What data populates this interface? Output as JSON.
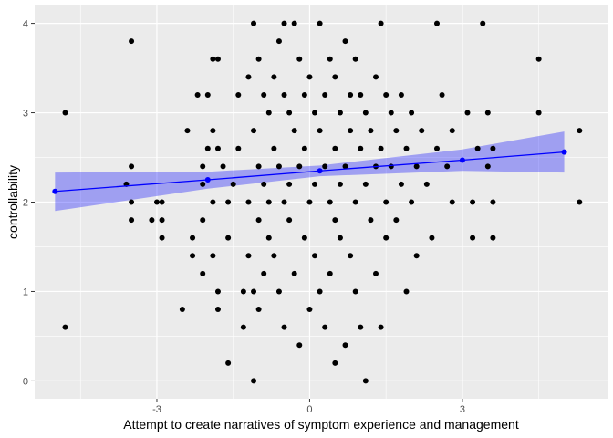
{
  "chart_data": {
    "type": "scatter",
    "title": "",
    "xlabel": "Attempt to create narratives of symptom experience and management",
    "ylabel": "controllability",
    "xlim": [
      -5.4,
      5.85
    ],
    "ylim": [
      -0.2,
      4.2
    ],
    "x_ticks": [
      -3,
      0,
      3
    ],
    "x_tick_labels": [
      "-3",
      "0",
      "3"
    ],
    "y_ticks": [
      0,
      1,
      2,
      3,
      4
    ],
    "y_tick_labels": [
      "0",
      "1",
      "2",
      "3",
      "4"
    ],
    "grid": true,
    "legend": "none",
    "colors": {
      "panel": "#ebebeb",
      "grid_major": "#ffffff",
      "points": "#000000",
      "fit_line": "#0000ff",
      "ribbon": "#0000ff"
    },
    "series": [
      {
        "kind": "points",
        "points": [
          [
            -4.8,
            3.0
          ],
          [
            -4.8,
            0.6
          ],
          [
            -3.5,
            3.8
          ],
          [
            -3.6,
            2.2
          ],
          [
            -3.5,
            2.4
          ],
          [
            -3.5,
            2.0
          ],
          [
            -3.5,
            1.8
          ],
          [
            -3.1,
            1.8
          ],
          [
            -3.0,
            2.0
          ],
          [
            -2.9,
            2.0
          ],
          [
            -2.9,
            1.8
          ],
          [
            -2.9,
            1.6
          ],
          [
            -2.5,
            0.8
          ],
          [
            -2.4,
            2.8
          ],
          [
            -2.3,
            1.6
          ],
          [
            -2.3,
            1.4
          ],
          [
            -2.2,
            3.2
          ],
          [
            -2.1,
            2.4
          ],
          [
            -2.1,
            2.2
          ],
          [
            -2.1,
            1.8
          ],
          [
            -2.1,
            1.2
          ],
          [
            -2.0,
            3.2
          ],
          [
            -2.0,
            2.6
          ],
          [
            -1.9,
            3.6
          ],
          [
            -1.9,
            2.8
          ],
          [
            -1.9,
            2.0
          ],
          [
            -1.9,
            1.4
          ],
          [
            -1.8,
            3.6
          ],
          [
            -1.8,
            2.6
          ],
          [
            -1.8,
            1.0
          ],
          [
            -1.8,
            0.8
          ],
          [
            -1.7,
            2.4
          ],
          [
            -1.6,
            2.0
          ],
          [
            -1.6,
            1.6
          ],
          [
            -1.6,
            0.2
          ],
          [
            -1.5,
            2.2
          ],
          [
            -1.4,
            3.2
          ],
          [
            -1.4,
            2.6
          ],
          [
            -1.3,
            0.6
          ],
          [
            -1.3,
            1.0
          ],
          [
            -1.2,
            3.4
          ],
          [
            -1.2,
            2.0
          ],
          [
            -1.2,
            1.4
          ],
          [
            -1.1,
            4.0
          ],
          [
            -1.1,
            2.8
          ],
          [
            -1.1,
            1.0
          ],
          [
            -1.1,
            0.0
          ],
          [
            -1.0,
            3.6
          ],
          [
            -1.0,
            2.4
          ],
          [
            -1.0,
            1.8
          ],
          [
            -1.0,
            0.8
          ],
          [
            -0.9,
            3.2
          ],
          [
            -0.9,
            2.2
          ],
          [
            -0.9,
            1.2
          ],
          [
            -0.8,
            3.0
          ],
          [
            -0.8,
            2.0
          ],
          [
            -0.8,
            1.6
          ],
          [
            -0.7,
            3.4
          ],
          [
            -0.7,
            2.6
          ],
          [
            -0.7,
            1.4
          ],
          [
            -0.6,
            3.8
          ],
          [
            -0.6,
            2.4
          ],
          [
            -0.6,
            1.0
          ],
          [
            -0.5,
            4.0
          ],
          [
            -0.5,
            3.2
          ],
          [
            -0.5,
            2.0
          ],
          [
            -0.5,
            0.6
          ],
          [
            -0.4,
            3.0
          ],
          [
            -0.4,
            2.2
          ],
          [
            -0.4,
            1.8
          ],
          [
            -0.3,
            4.0
          ],
          [
            -0.3,
            2.8
          ],
          [
            -0.3,
            1.2
          ],
          [
            -0.2,
            3.6
          ],
          [
            -0.2,
            2.4
          ],
          [
            -0.2,
            0.4
          ],
          [
            -0.1,
            3.2
          ],
          [
            -0.1,
            2.6
          ],
          [
            -0.1,
            1.6
          ],
          [
            0.0,
            3.4
          ],
          [
            0.0,
            2.0
          ],
          [
            0.0,
            0.8
          ],
          [
            0.1,
            3.0
          ],
          [
            0.1,
            2.2
          ],
          [
            0.1,
            1.4
          ],
          [
            0.2,
            4.0
          ],
          [
            0.2,
            2.8
          ],
          [
            0.2,
            1.0
          ],
          [
            0.3,
            3.2
          ],
          [
            0.3,
            2.4
          ],
          [
            0.3,
            0.6
          ],
          [
            0.4,
            3.6
          ],
          [
            0.4,
            2.0
          ],
          [
            0.4,
            1.2
          ],
          [
            0.5,
            3.4
          ],
          [
            0.5,
            2.6
          ],
          [
            0.5,
            1.8
          ],
          [
            0.5,
            0.2
          ],
          [
            0.6,
            3.0
          ],
          [
            0.6,
            2.2
          ],
          [
            0.6,
            1.6
          ],
          [
            0.7,
            3.8
          ],
          [
            0.7,
            2.4
          ],
          [
            0.7,
            0.4
          ],
          [
            0.8,
            3.2
          ],
          [
            0.8,
            2.8
          ],
          [
            0.8,
            1.4
          ],
          [
            0.9,
            3.6
          ],
          [
            0.9,
            2.0
          ],
          [
            0.9,
            1.0
          ],
          [
            1.0,
            3.2
          ],
          [
            1.0,
            2.6
          ],
          [
            1.0,
            0.6
          ],
          [
            1.1,
            3.0
          ],
          [
            1.1,
            2.2
          ],
          [
            1.1,
            0.0
          ],
          [
            1.2,
            2.8
          ],
          [
            1.2,
            1.8
          ],
          [
            1.3,
            3.4
          ],
          [
            1.3,
            2.4
          ],
          [
            1.3,
            1.2
          ],
          [
            1.4,
            4.0
          ],
          [
            1.4,
            2.6
          ],
          [
            1.4,
            0.6
          ],
          [
            1.5,
            3.2
          ],
          [
            1.5,
            2.0
          ],
          [
            1.5,
            1.6
          ],
          [
            1.6,
            3.0
          ],
          [
            1.6,
            2.4
          ],
          [
            1.7,
            2.8
          ],
          [
            1.7,
            1.8
          ],
          [
            1.8,
            3.2
          ],
          [
            1.8,
            2.2
          ],
          [
            1.9,
            2.6
          ],
          [
            1.9,
            1.0
          ],
          [
            2.0,
            3.0
          ],
          [
            2.0,
            2.0
          ],
          [
            2.1,
            2.4
          ],
          [
            2.1,
            1.4
          ],
          [
            2.2,
            2.8
          ],
          [
            2.3,
            2.2
          ],
          [
            2.4,
            1.6
          ],
          [
            2.5,
            4.0
          ],
          [
            2.5,
            2.6
          ],
          [
            2.6,
            3.2
          ],
          [
            2.7,
            2.4
          ],
          [
            2.8,
            2.8
          ],
          [
            2.8,
            2.0
          ],
          [
            3.1,
            3.0
          ],
          [
            3.2,
            2.0
          ],
          [
            3.2,
            1.6
          ],
          [
            3.3,
            2.6
          ],
          [
            3.4,
            4.0
          ],
          [
            3.5,
            3.0
          ],
          [
            3.5,
            2.4
          ],
          [
            3.6,
            2.6
          ],
          [
            3.6,
            2.0
          ],
          [
            3.6,
            1.6
          ],
          [
            4.5,
            3.6
          ],
          [
            4.5,
            3.0
          ],
          [
            5.3,
            2.8
          ],
          [
            5.3,
            2.0
          ]
        ]
      },
      {
        "kind": "fit-line",
        "points": [
          [
            -5.0,
            2.12
          ],
          [
            -2.0,
            2.25
          ],
          [
            0.2,
            2.35
          ],
          [
            3.0,
            2.47
          ],
          [
            5.0,
            2.56
          ]
        ],
        "ci_lower": [
          1.9,
          2.15,
          2.29,
          2.35,
          2.33
        ],
        "ci_upper": [
          2.33,
          2.34,
          2.41,
          2.59,
          2.79
        ]
      }
    ]
  }
}
